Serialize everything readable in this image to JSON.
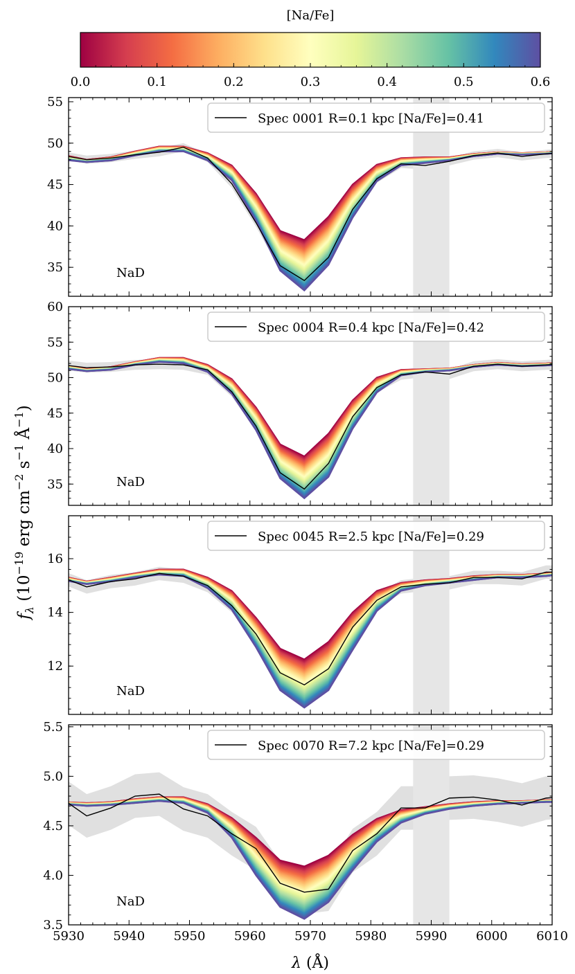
{
  "figure": {
    "colorbar": {
      "label": "[Na/Fe]",
      "min": 0.0,
      "max": 0.6,
      "ticks": [
        "0.0",
        "0.1",
        "0.2",
        "0.3",
        "0.4",
        "0.5",
        "0.6"
      ],
      "colormap": "Spectral",
      "colors": [
        "#9e0142",
        "#d53e4f",
        "#f46d43",
        "#fdae61",
        "#fee08b",
        "#ffffbf",
        "#e6f598",
        "#abdda4",
        "#66c2a5",
        "#3288bd",
        "#5e4fa2"
      ]
    },
    "xlabel": "λ (Å)",
    "ylabel": "f_λ (10^-19 erg cm^-2 s^-1 Å^-1)",
    "masked_region_color": "#e6e6e6",
    "uncertainty_color": "#e0e0e0",
    "observed_color": "#000000"
  },
  "chart_data": [
    {
      "type": "line",
      "legend": "Spec 0001 R=0.1 kpc [Na/Fe]=0.41",
      "annotation": "NaD",
      "xlim": [
        5930,
        6010
      ],
      "ylim": [
        31.5,
        55.5
      ],
      "yticks": [
        35,
        40,
        45,
        50,
        55
      ],
      "masked_x": [
        5987,
        5993
      ],
      "x": [
        5929,
        5933,
        5937,
        5941,
        5945,
        5949,
        5953,
        5957,
        5961,
        5965,
        5969,
        5973,
        5977,
        5981,
        5985,
        5989,
        5993,
        5997,
        6001,
        6005,
        6009,
        6011
      ],
      "model_low": [
        48.6,
        48.0,
        48.3,
        49.0,
        49.6,
        49.6,
        48.8,
        47.3,
        43.9,
        39.4,
        38.3,
        41.1,
        45.0,
        47.4,
        48.2,
        48.3,
        48.3,
        48.7,
        48.9,
        48.8,
        48.9,
        49.0
      ],
      "model_high": [
        48.0,
        47.7,
        47.9,
        48.5,
        49.0,
        49.0,
        47.9,
        45.5,
        40.6,
        34.6,
        32.2,
        35.3,
        41.0,
        45.4,
        47.3,
        47.6,
        47.9,
        48.4,
        48.7,
        48.6,
        48.7,
        48.8
      ],
      "observed": [
        48.5,
        48.0,
        48.2,
        48.6,
        48.9,
        49.5,
        48.2,
        45.1,
        40.4,
        35.2,
        33.4,
        36.2,
        42.0,
        45.7,
        47.5,
        47.3,
        47.8,
        48.5,
        48.8,
        48.4,
        48.7,
        48.8
      ],
      "sigma": 0.5
    },
    {
      "type": "line",
      "legend": "Spec 0004 R=0.4 kpc [Na/Fe]=0.42",
      "annotation": "NaD",
      "xlim": [
        5930,
        6010
      ],
      "ylim": [
        32,
        60
      ],
      "yticks": [
        35,
        40,
        45,
        50,
        55,
        60
      ],
      "masked_x": [
        5987,
        5993
      ],
      "x": [
        5929,
        5933,
        5937,
        5941,
        5945,
        5949,
        5953,
        5957,
        5961,
        5965,
        5969,
        5973,
        5977,
        5981,
        5985,
        5989,
        5993,
        5997,
        6001,
        6005,
        6009,
        6011
      ],
      "model_low": [
        51.8,
        51.2,
        51.5,
        52.2,
        52.8,
        52.8,
        51.8,
        49.8,
        45.8,
        40.6,
        38.9,
        42.1,
        46.8,
        50.0,
        51.1,
        51.2,
        51.3,
        51.8,
        52.1,
        51.9,
        52.0,
        52.1
      ],
      "model_high": [
        51.3,
        50.9,
        51.1,
        51.8,
        52.2,
        52.0,
        50.8,
        47.7,
        42.6,
        35.8,
        33.0,
        36.0,
        42.8,
        47.9,
        50.3,
        50.8,
        51.0,
        51.5,
        51.8,
        51.6,
        51.7,
        51.8
      ],
      "observed": [
        51.8,
        51.4,
        51.5,
        51.8,
        51.9,
        51.8,
        51.1,
        48.0,
        43.2,
        36.6,
        34.3,
        37.9,
        44.5,
        48.6,
        50.4,
        50.8,
        50.5,
        51.6,
        51.9,
        51.6,
        51.8,
        51.9
      ],
      "sigma": 0.7
    },
    {
      "type": "line",
      "legend": "Spec 0045 R=2.5 kpc [Na/Fe]=0.29",
      "annotation": "NaD",
      "xlim": [
        5930,
        6010
      ],
      "ylim": [
        10.2,
        17.6
      ],
      "yticks": [
        12,
        14,
        16
      ],
      "masked_x": [
        5987,
        5993
      ],
      "x": [
        5929,
        5933,
        5937,
        5941,
        5945,
        5949,
        5953,
        5957,
        5961,
        5965,
        5969,
        5973,
        5977,
        5981,
        5985,
        5989,
        5993,
        5997,
        6001,
        6005,
        6009,
        6011
      ],
      "model_low": [
        15.35,
        15.15,
        15.3,
        15.45,
        15.6,
        15.6,
        15.3,
        14.8,
        13.8,
        12.65,
        12.25,
        12.9,
        14.0,
        14.8,
        15.1,
        15.2,
        15.25,
        15.35,
        15.4,
        15.4,
        15.45,
        15.5
      ],
      "model_high": [
        15.2,
        15.05,
        15.15,
        15.3,
        15.4,
        15.35,
        14.9,
        14.1,
        12.7,
        11.1,
        10.45,
        11.1,
        12.6,
        14.05,
        14.8,
        15.0,
        15.1,
        15.2,
        15.3,
        15.3,
        15.35,
        15.4
      ],
      "observed": [
        15.3,
        14.95,
        15.15,
        15.25,
        15.45,
        15.35,
        15.0,
        14.25,
        13.2,
        11.75,
        11.3,
        11.9,
        13.45,
        14.45,
        14.95,
        15.05,
        15.1,
        15.3,
        15.3,
        15.25,
        15.5,
        15.5
      ],
      "sigma": 0.25
    },
    {
      "type": "line",
      "legend": "Spec 0070 R=7.2 kpc [Na/Fe]=0.29",
      "annotation": "NaD",
      "xlim": [
        5930,
        6010
      ],
      "ylim": [
        3.5,
        5.52
      ],
      "yticks": [
        "3.5",
        "4.0",
        "4.5",
        "5.0",
        "5.5"
      ],
      "masked_x": [
        5987,
        5993
      ],
      "x": [
        5929,
        5933,
        5937,
        5941,
        5945,
        5949,
        5953,
        5957,
        5961,
        5965,
        5969,
        5973,
        5977,
        5981,
        5985,
        5989,
        5993,
        5997,
        6001,
        6005,
        6009,
        6011
      ],
      "model_low": [
        4.74,
        4.73,
        4.74,
        4.77,
        4.79,
        4.79,
        4.72,
        4.58,
        4.38,
        4.15,
        4.09,
        4.2,
        4.41,
        4.57,
        4.66,
        4.69,
        4.72,
        4.74,
        4.75,
        4.75,
        4.76,
        4.76
      ],
      "model_high": [
        4.72,
        4.7,
        4.71,
        4.73,
        4.75,
        4.73,
        4.63,
        4.38,
        4.0,
        3.68,
        3.56,
        3.73,
        4.05,
        4.34,
        4.53,
        4.62,
        4.67,
        4.7,
        4.72,
        4.73,
        4.74,
        4.74
      ],
      "observed": [
        4.77,
        4.6,
        4.68,
        4.8,
        4.82,
        4.67,
        4.6,
        4.42,
        4.27,
        3.92,
        3.83,
        3.86,
        4.25,
        4.42,
        4.68,
        4.68,
        4.78,
        4.79,
        4.76,
        4.71,
        4.78,
        4.79
      ],
      "sigma": 0.22
    }
  ]
}
